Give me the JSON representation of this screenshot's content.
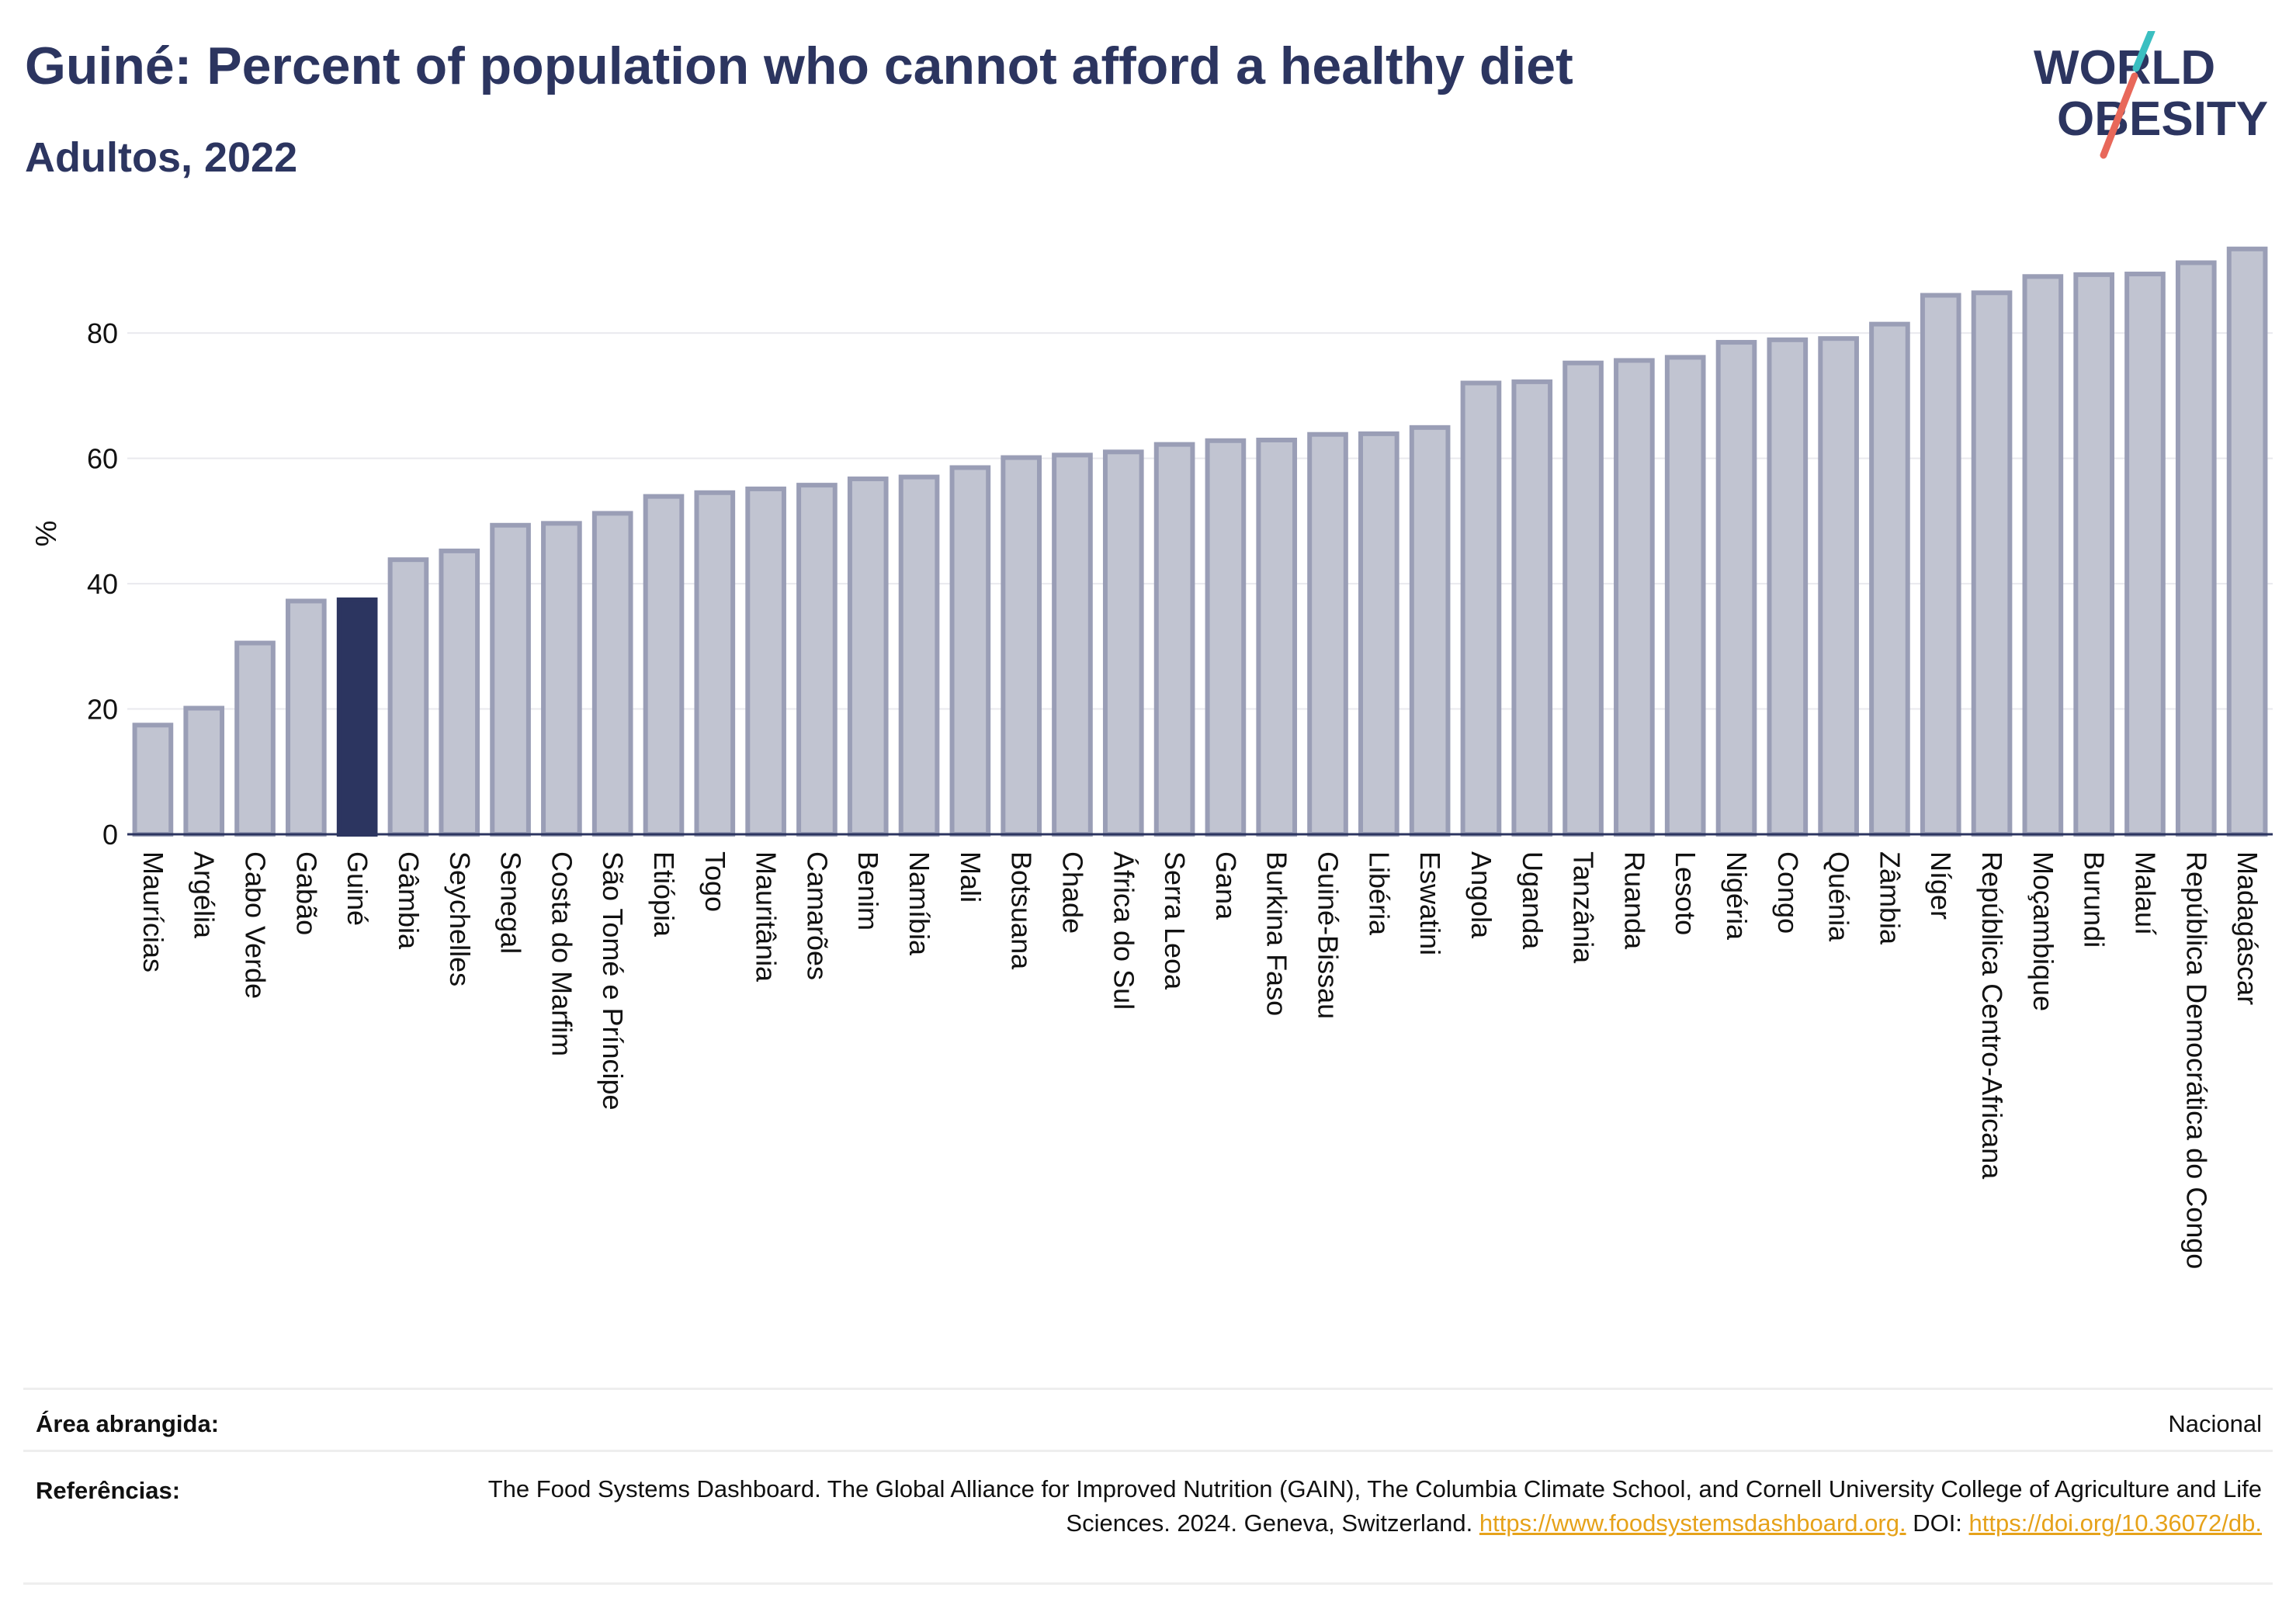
{
  "header": {
    "title": "Guiné: Percent of population who cannot afford a healthy diet",
    "subtitle": "Adultos, 2022"
  },
  "logo": {
    "line1": "WORLD",
    "line2": "OBESITY",
    "accent_teal": "#3bbfc1",
    "accent_coral": "#e8685a"
  },
  "chart_data": {
    "type": "bar",
    "title": "Guiné: Percent of population who cannot afford a healthy diet",
    "subtitle": "Adultos, 2022",
    "ylabel": "%",
    "xlabel": "",
    "ylim": [
      0,
      96
    ],
    "yticks": [
      0,
      20,
      40,
      60,
      80
    ],
    "grid": true,
    "highlight": "Guiné",
    "highlight_color": "#2c3560",
    "bar_color": "#c1c4d1",
    "bar_edge_color": "#9a9eb6",
    "categories": [
      "Maurícias",
      "Argélia",
      "Cabo Verde",
      "Gabão",
      "Guiné",
      "Gâmbia",
      "Seychelles",
      "Senegal",
      "Costa do Marfim",
      "São Tomé e Príncipe",
      "Etiópia",
      "Togo",
      "Mauritânia",
      "Camarões",
      "Benim",
      "Namíbia",
      "Mali",
      "Botsuana",
      "Chade",
      "África do Sul",
      "Serra Leoa",
      "Gana",
      "Burkina Faso",
      "Guiné-Bissau",
      "Libéria",
      "Eswatini",
      "Angola",
      "Uganda",
      "Tanzânia",
      "Ruanda",
      "Lesoto",
      "Nigéria",
      "Congo",
      "Quénia",
      "Zâmbia",
      "Níger",
      "República Centro-Africana",
      "Moçambique",
      "Burundi",
      "Malauí",
      "República Democrática do Congo",
      "Madagáscar"
    ],
    "values": [
      17.8,
      20.5,
      30.9,
      37.6,
      37.8,
      44.2,
      45.6,
      49.7,
      50.0,
      51.6,
      54.3,
      54.9,
      55.5,
      56.1,
      57.1,
      57.4,
      58.9,
      60.5,
      60.9,
      61.4,
      62.6,
      63.2,
      63.3,
      64.2,
      64.3,
      65.3,
      72.4,
      72.6,
      75.6,
      76.0,
      76.5,
      78.9,
      79.3,
      79.5,
      81.8,
      86.4,
      86.8,
      89.4,
      89.7,
      89.8,
      91.6,
      93.8
    ]
  },
  "meta": {
    "area_label": "Área abrangida:",
    "area_value": "Nacional",
    "refs_label": "Referências:",
    "refs_text": "The Food Systems Dashboard. The Global Alliance for Improved Nutrition (GAIN), The Columbia Climate School, and Cornell University College of Agriculture and Life Sciences. 2024. Geneva, Switzerland.",
    "refs_link1": "https://www.foodsystemsdashboard.org.",
    "refs_doi_label": "DOI:",
    "refs_link2": "https://doi.org/10.36072/db."
  }
}
